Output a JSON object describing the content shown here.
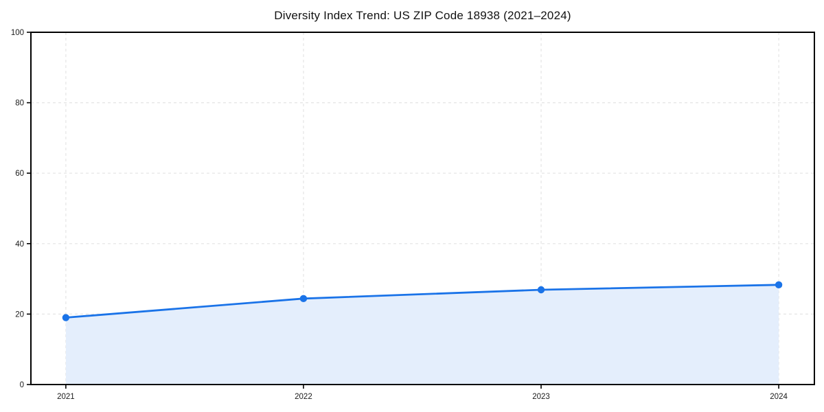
{
  "chart_data": {
    "type": "area",
    "title": "Diversity Index Trend: US ZIP Code 18938 (2021–2024)",
    "x": [
      2021,
      2022,
      2023,
      2024
    ],
    "series": [
      {
        "name": "Diversity Index",
        "values": [
          19.0,
          24.4,
          26.9,
          28.3
        ]
      }
    ],
    "xtick_labels": [
      "2021",
      "2022",
      "2023",
      "2024"
    ],
    "xticks": [
      2021,
      2022,
      2023,
      2024
    ],
    "yticks": [
      0,
      20,
      40,
      60,
      80,
      100
    ],
    "ytick_labels": [
      "0",
      "20",
      "40",
      "60",
      "80",
      "100"
    ],
    "xlim": [
      2020.853,
      2024.15
    ],
    "ylim": [
      0,
      100
    ],
    "xlabel": "",
    "ylabel": "",
    "grid": true,
    "grid_style": "dashed",
    "legend": false,
    "marker": "circle",
    "colors": {
      "line": "#1a73e8",
      "marker": "#1a73e8",
      "fill": "#e4eefc",
      "grid": "#e4e4e4",
      "spine": "#000000",
      "tick": "#000000",
      "tick_text": "#1a1a1a",
      "title_text": "#111111",
      "background": "#ffffff"
    }
  }
}
